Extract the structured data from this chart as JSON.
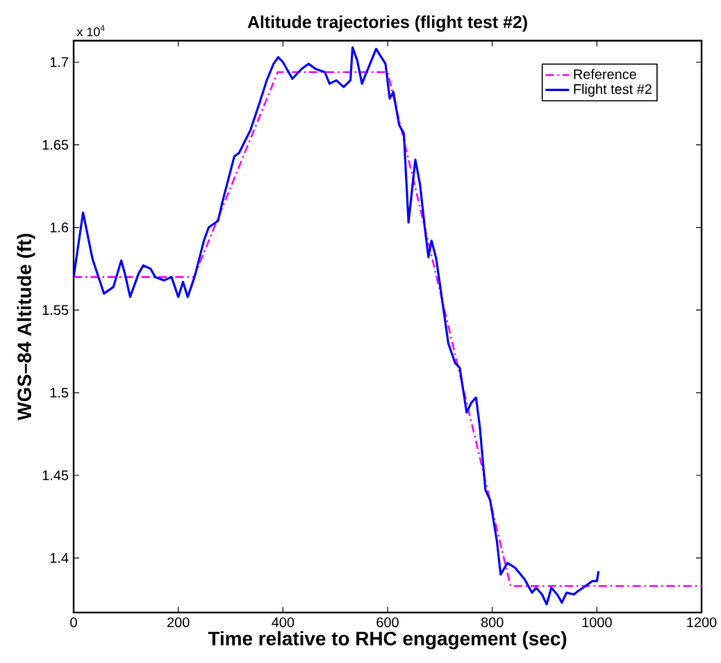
{
  "chart_data": {
    "type": "line",
    "title": "Altitude trajectories (flight test #2)",
    "xlabel": "Time relative to RHC engagement (sec)",
    "ylabel": "WGS–84 Altitude (ft)",
    "annotations": [
      "x 10$^{4}$"
    ],
    "xlim": [
      0,
      1200
    ],
    "xticks": [
      0,
      200,
      400,
      600,
      800,
      1000,
      1200
    ],
    "ylim": [
      1.367,
      1.713
    ],
    "yticks": [
      1.4,
      1.45,
      1.5,
      1.55,
      1.6,
      1.65,
      1.7
    ],
    "grid": false,
    "legend": "top right",
    "marker": "none",
    "series": [
      {
        "name": "Reference",
        "color": "#ff00ff",
        "line_style": "dashdot",
        "x": [
          0,
          230,
          390,
          600,
          835,
          1200
        ],
        "values": [
          1.57,
          1.57,
          1.694,
          1.694,
          1.383,
          1.383
        ]
      },
      {
        "name": "Flight test #2",
        "color": "#0000ff",
        "line_style": "solid",
        "x": [
          0,
          18,
          36,
          58,
          76,
          91,
          98,
          108,
          124,
          133,
          147,
          156,
          173,
          187,
          200,
          209,
          218,
          231,
          249,
          258,
          276,
          284,
          307,
          316,
          338,
          356,
          369,
          382,
          391,
          400,
          418,
          436,
          449,
          462,
          480,
          489,
          502,
          516,
          529,
          533,
          542,
          551,
          578,
          596,
          604,
          611,
          622,
          631,
          640,
          653,
          662,
          671,
          678,
          684,
          693,
          707,
          716,
          729,
          738,
          751,
          760,
          769,
          776,
          787,
          796,
          809,
          816,
          829,
          844,
          862,
          876,
          884,
          895,
          904,
          913,
          924,
          933,
          942,
          956,
          964,
          978,
          991,
          1000,
          1003
        ],
        "values": [
          1.57,
          1.609,
          1.581,
          1.56,
          1.564,
          1.58,
          1.572,
          1.558,
          1.572,
          1.577,
          1.575,
          1.57,
          1.568,
          1.57,
          1.558,
          1.567,
          1.558,
          1.57,
          1.592,
          1.6,
          1.604,
          1.615,
          1.643,
          1.645,
          1.659,
          1.676,
          1.689,
          1.699,
          1.703,
          1.7,
          1.69,
          1.696,
          1.699,
          1.696,
          1.694,
          1.687,
          1.689,
          1.685,
          1.689,
          1.709,
          1.701,
          1.687,
          1.708,
          1.699,
          1.678,
          1.682,
          1.662,
          1.657,
          1.603,
          1.641,
          1.626,
          1.6,
          1.582,
          1.592,
          1.581,
          1.55,
          1.53,
          1.518,
          1.515,
          1.488,
          1.494,
          1.497,
          1.48,
          1.441,
          1.435,
          1.41,
          1.39,
          1.397,
          1.394,
          1.387,
          1.379,
          1.382,
          1.378,
          1.372,
          1.382,
          1.378,
          1.373,
          1.379,
          1.378,
          1.38,
          1.383,
          1.386,
          1.386,
          1.392
        ]
      }
    ]
  }
}
